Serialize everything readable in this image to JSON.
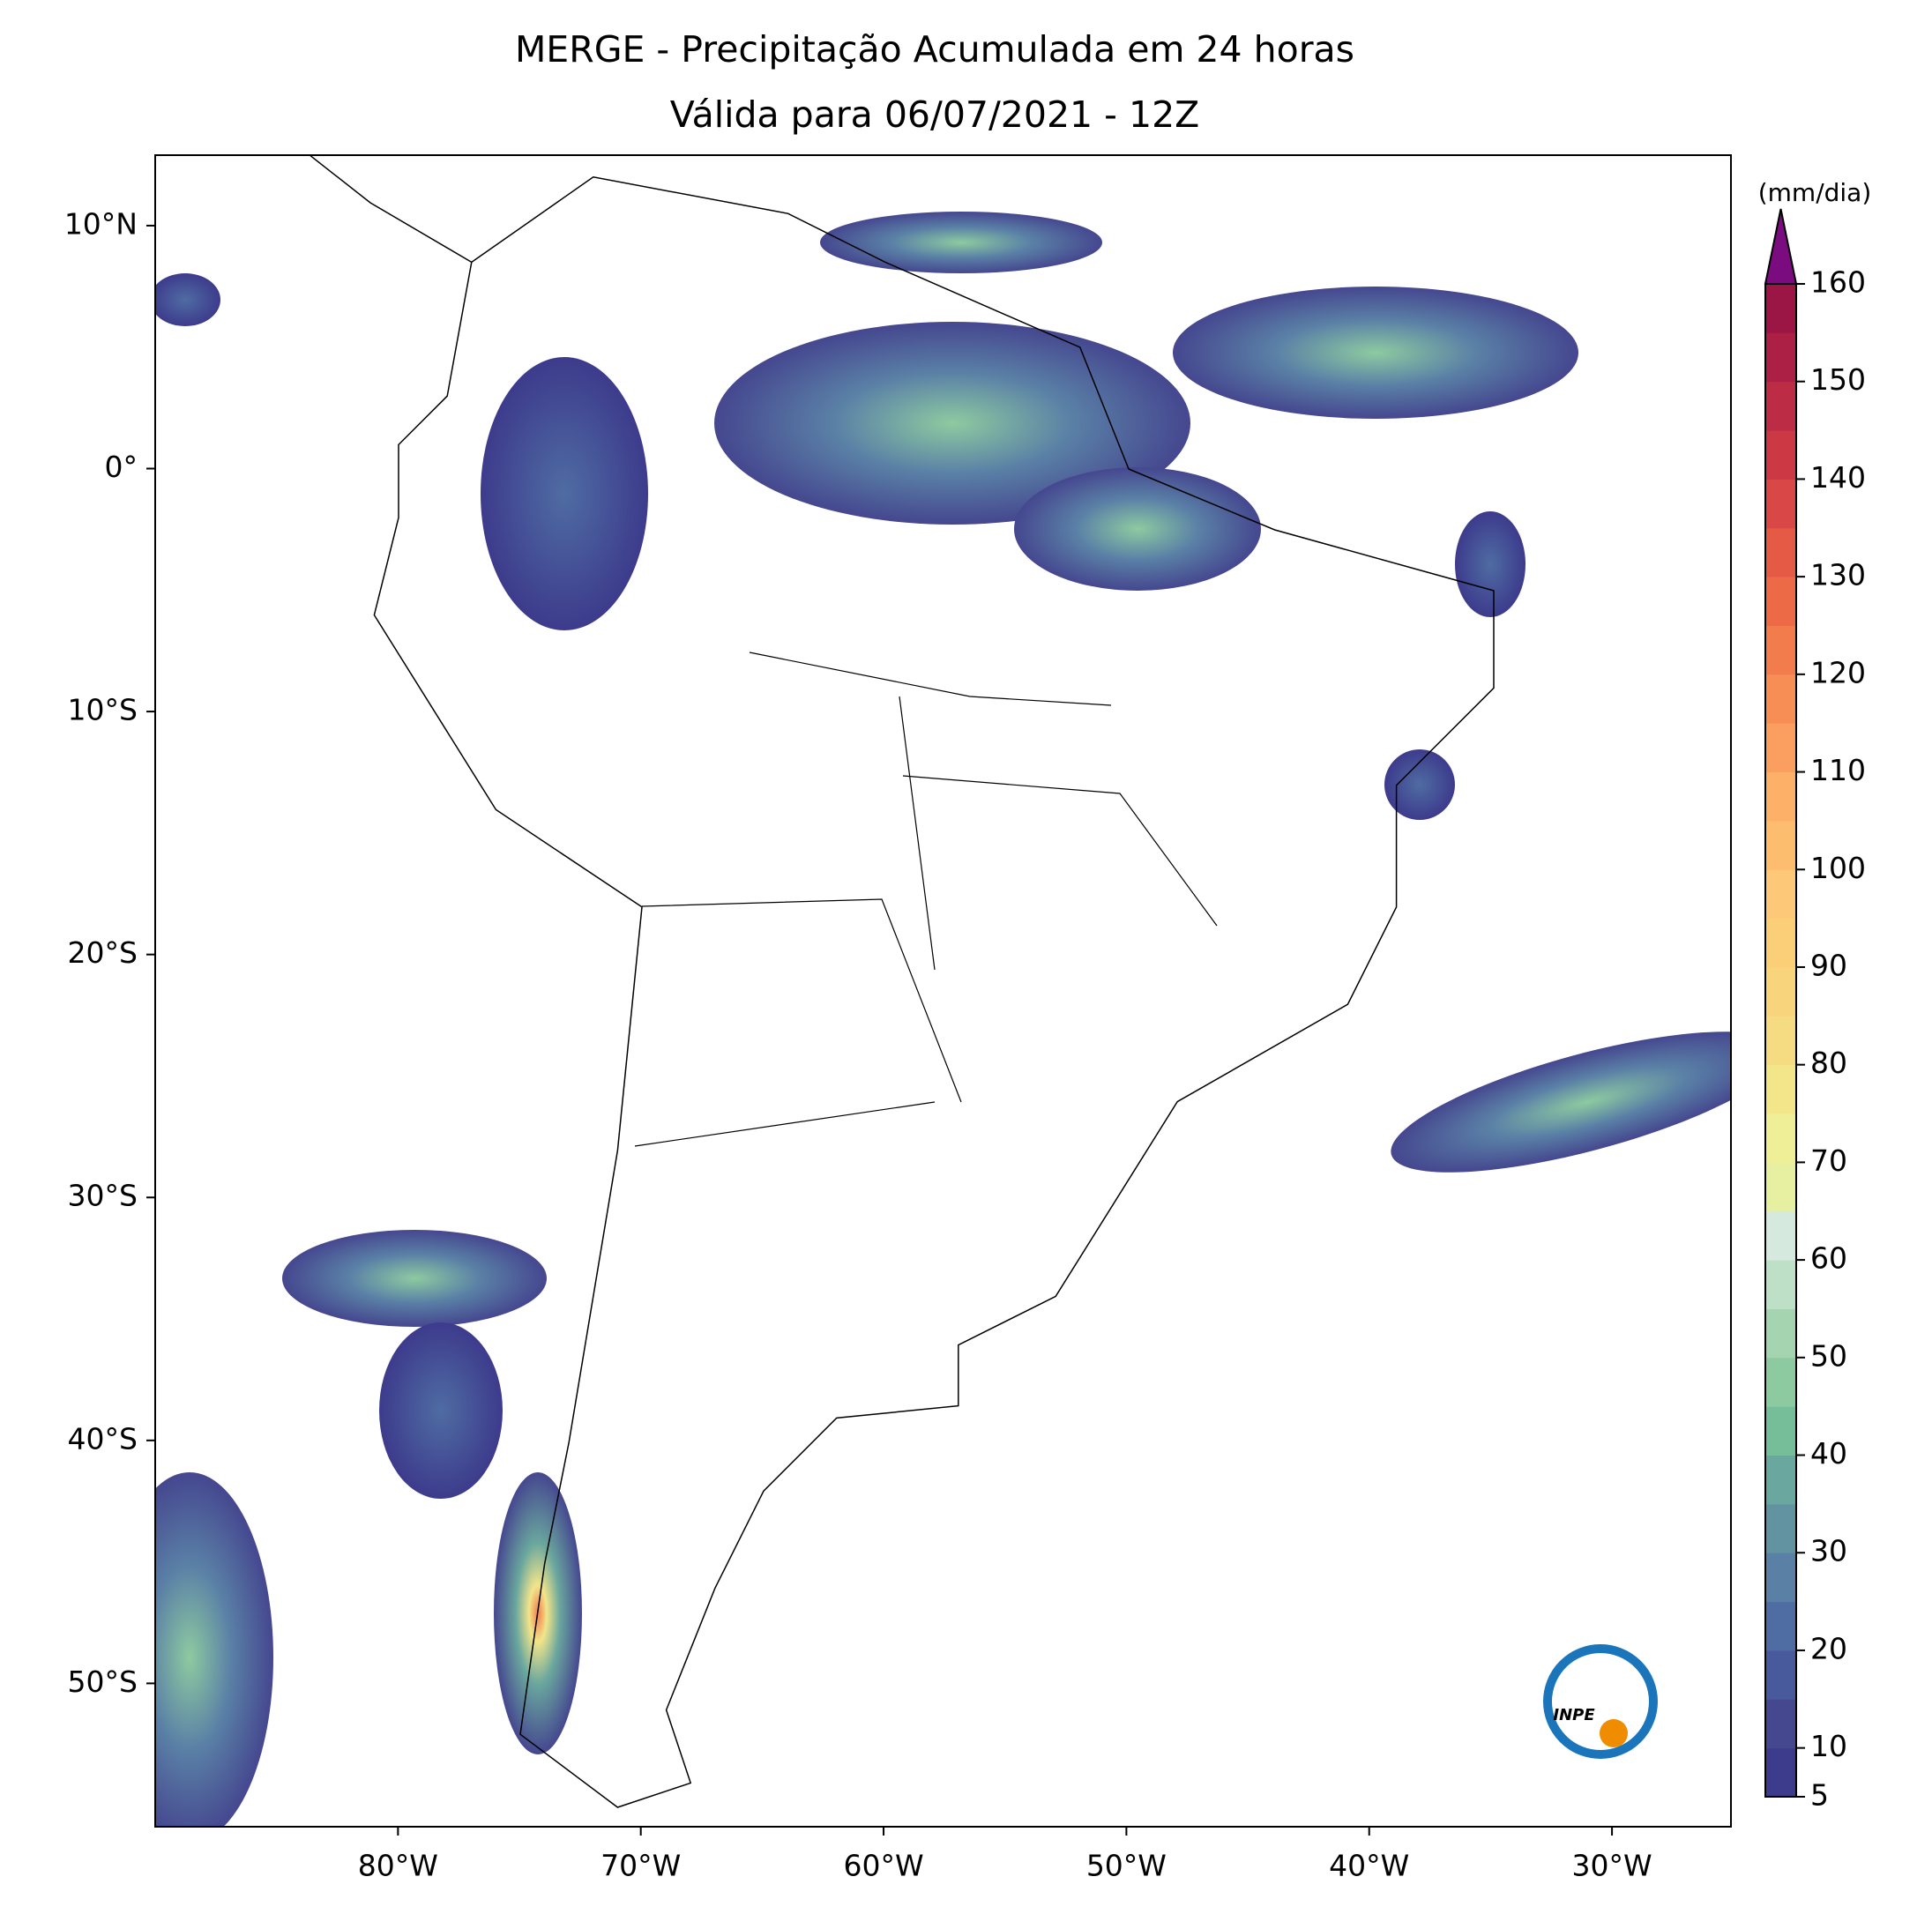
{
  "header": {
    "title": "MERGE - Precipitação Acumulada em 24 horas",
    "subtitle": "Válida para 06/07/2021 - 12Z"
  },
  "map": {
    "lonlim": [
      -90,
      -25.1
    ],
    "latlim": [
      -55.9,
      12.9
    ],
    "lon_ticks": [
      {
        "value": -80,
        "label": "80°W"
      },
      {
        "value": -70,
        "label": "70°W"
      },
      {
        "value": -60,
        "label": "60°W"
      },
      {
        "value": -50,
        "label": "50°W"
      },
      {
        "value": -40,
        "label": "40°W"
      },
      {
        "value": -30,
        "label": "30°W"
      }
    ],
    "lat_ticks": [
      {
        "value": 10,
        "label": "10°N"
      },
      {
        "value": 0,
        "label": "0°"
      },
      {
        "value": -10,
        "label": "10°S"
      },
      {
        "value": -20,
        "label": "20°S"
      },
      {
        "value": -30,
        "label": "30°S"
      },
      {
        "value": -40,
        "label": "40°S"
      },
      {
        "value": -50,
        "label": "50°S"
      }
    ]
  },
  "colorbar": {
    "unit": "(mm/dia)",
    "ticks": [
      5,
      10,
      20,
      30,
      40,
      50,
      60,
      70,
      80,
      90,
      100,
      110,
      120,
      130,
      140,
      150,
      160
    ],
    "colors": [
      "#3d3b8c",
      "#45478f",
      "#495a9c",
      "#4f6ca3",
      "#5a80a6",
      "#6193a1",
      "#6aa79e",
      "#76bd9a",
      "#8dcaa0",
      "#a4d4b0",
      "#bde0c7",
      "#d6e9de",
      "#e6f0a0",
      "#eeef97",
      "#f2e58a",
      "#f5dc82",
      "#f8d57c",
      "#fbcf78",
      "#fdc877",
      "#fdbd6f",
      "#fcb068",
      "#fa9f60",
      "#f78e56",
      "#f37c4d",
      "#ed6a47",
      "#e55a45",
      "#d94846",
      "#cc3945",
      "#bd2c45",
      "#ad2046",
      "#9c1645"
    ],
    "over_color": "#7b0c7f"
  },
  "logo": {
    "text": "INPE"
  }
}
